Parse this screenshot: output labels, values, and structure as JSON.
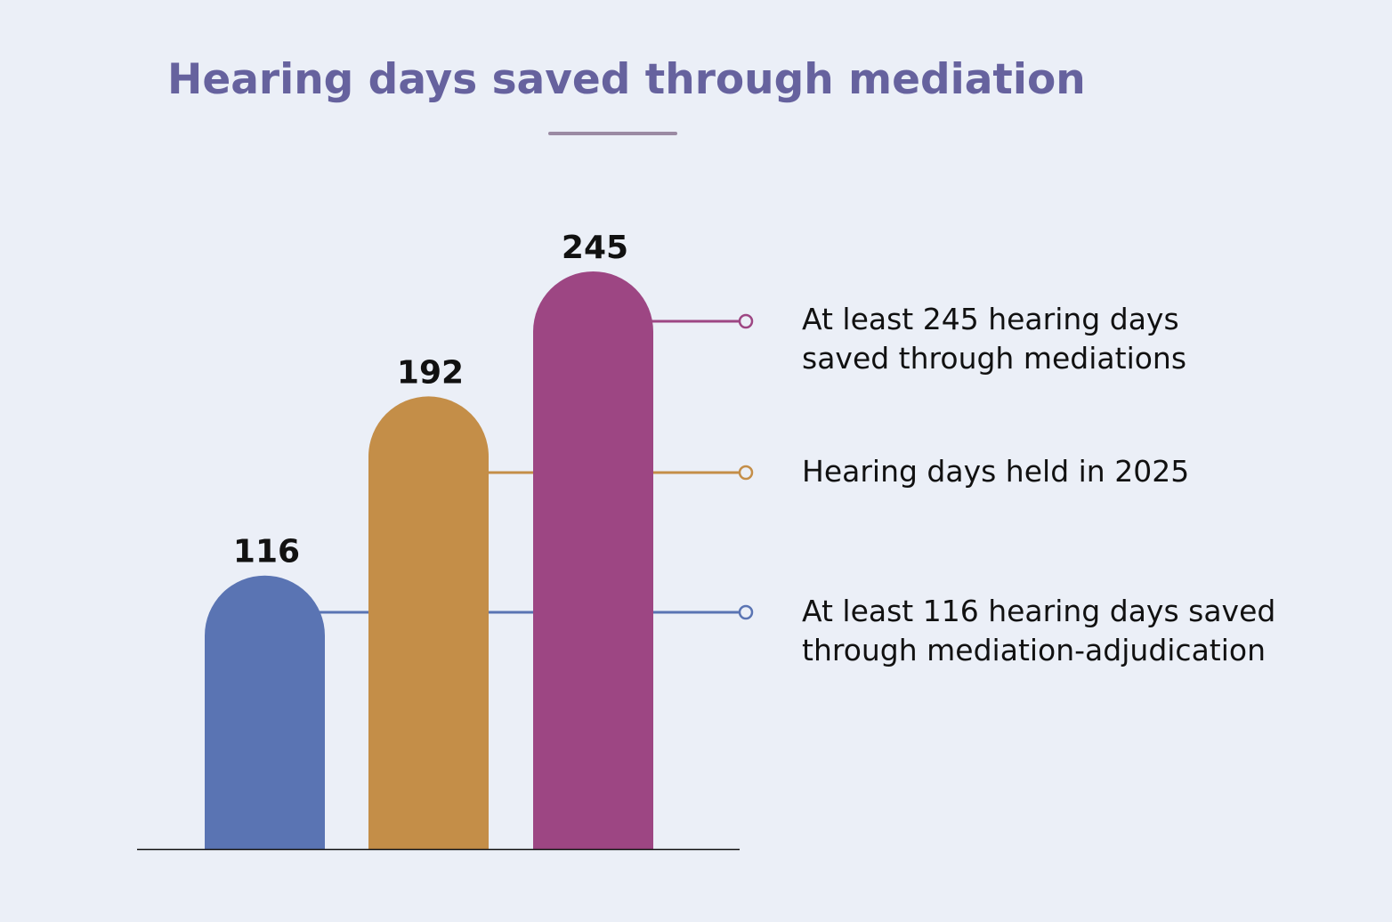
{
  "chart_data": {
    "type": "bar",
    "title": "Hearing days saved through mediation",
    "categories": [
      "",
      "",
      ""
    ],
    "values": [
      116,
      192,
      245
    ],
    "colors": [
      "#5a74b3",
      "#c48e48",
      "#9d4683"
    ],
    "data_labels": [
      "116",
      "192",
      "245"
    ],
    "annotations": [
      {
        "lines": [
          "At least 245 hearing days",
          "saved through mediations"
        ],
        "value": 245,
        "color": "#9d4683"
      },
      {
        "lines": [
          "Hearing days held in 2025"
        ],
        "value": 192,
        "color": "#c48e48"
      },
      {
        "lines": [
          "At least 116 hearing days saved",
          "through mediation-adjudication"
        ],
        "value": 116,
        "color": "#5a74b3"
      }
    ],
    "xlabel": "",
    "ylabel": "",
    "grid": false,
    "legend": "none"
  },
  "colors": {
    "background": "#ebeff7",
    "title": "#66629e",
    "title_rule": "#9b8aa3",
    "baseline": "#111111",
    "label_text": "#111111"
  }
}
